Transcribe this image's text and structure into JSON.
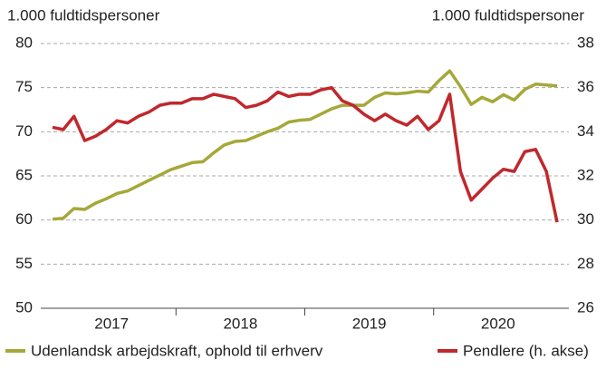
{
  "chart_data": {
    "type": "line",
    "left_axis_title": "1.000 fuldtidspersoner",
    "right_axis_title": "1.000 fuldtidspersoner",
    "categories": [
      "2017",
      null,
      null,
      null,
      null,
      null,
      null,
      null,
      null,
      null,
      null,
      null,
      "2018",
      null,
      null,
      null,
      null,
      null,
      null,
      null,
      null,
      null,
      null,
      null,
      "2019",
      null,
      null,
      null,
      null,
      null,
      null,
      null,
      null,
      null,
      null,
      null,
      "2020",
      null,
      null,
      null,
      null,
      null,
      null,
      null,
      null,
      null,
      null,
      null
    ],
    "series": [
      {
        "name": "Udenlandsk arbejdskraft, ophold til erhverv",
        "color": "#a5a83a",
        "axis": "y",
        "values": [
          60.1,
          60.2,
          61.3,
          61.2,
          61.9,
          62.4,
          63.0,
          63.3,
          63.9,
          64.5,
          65.1,
          65.7,
          66.1,
          66.5,
          66.6,
          67.6,
          68.5,
          68.9,
          69.0,
          69.5,
          70.0,
          70.4,
          71.1,
          71.3,
          71.4,
          72.0,
          72.6,
          73.0,
          73.0,
          73.0,
          73.9,
          74.4,
          74.3,
          74.4,
          74.6,
          74.5,
          75.8,
          76.9,
          75.1,
          73.1,
          73.9,
          73.4,
          74.2,
          73.6,
          74.8,
          75.4,
          75.3,
          75.2
        ]
      },
      {
        "name": "Pendlere (h. akse)",
        "color": "#c0282d",
        "axis": "y2",
        "values": [
          34.2,
          34.1,
          34.7,
          33.6,
          33.8,
          34.1,
          34.5,
          34.4,
          34.7,
          34.9,
          35.2,
          35.3,
          35.3,
          35.5,
          35.5,
          35.7,
          35.6,
          35.5,
          35.1,
          35.2,
          35.4,
          35.8,
          35.6,
          35.7,
          35.7,
          35.9,
          36.0,
          35.4,
          35.2,
          34.8,
          34.5,
          34.8,
          34.5,
          34.3,
          34.7,
          34.1,
          34.5,
          35.7,
          32.2,
          30.9,
          31.4,
          31.9,
          32.3,
          32.2,
          33.1,
          33.2,
          32.2,
          29.9
        ]
      }
    ],
    "ylim": [
      50,
      80
    ],
    "yticks": [
      50,
      55,
      60,
      65,
      70,
      75,
      80
    ],
    "y2lim": [
      26,
      38
    ],
    "y2ticks": [
      26,
      28,
      30,
      32,
      34,
      36,
      38
    ],
    "grid": true
  }
}
